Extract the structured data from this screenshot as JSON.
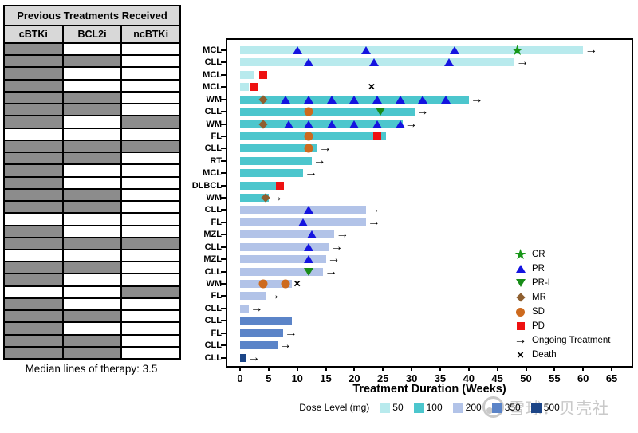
{
  "table": {
    "title": "Previous Treatments Received",
    "columns": [
      "cBTKi",
      "BCL2i",
      "ncBTKi"
    ],
    "rows": [
      [
        1,
        0,
        0
      ],
      [
        1,
        1,
        0
      ],
      [
        1,
        0,
        0
      ],
      [
        1,
        0,
        0
      ],
      [
        1,
        1,
        0
      ],
      [
        1,
        1,
        0
      ],
      [
        1,
        0,
        1
      ],
      [
        0,
        0,
        0
      ],
      [
        1,
        1,
        1
      ],
      [
        1,
        1,
        0
      ],
      [
        1,
        0,
        0
      ],
      [
        1,
        0,
        0
      ],
      [
        1,
        1,
        0
      ],
      [
        1,
        1,
        0
      ],
      [
        0,
        0,
        0
      ],
      [
        1,
        0,
        0
      ],
      [
        1,
        1,
        1
      ],
      [
        0,
        0,
        0
      ],
      [
        1,
        1,
        0
      ],
      [
        1,
        0,
        0
      ],
      [
        0,
        0,
        1
      ],
      [
        1,
        0,
        0
      ],
      [
        1,
        1,
        0
      ],
      [
        1,
        0,
        0
      ],
      [
        1,
        1,
        0
      ],
      [
        1,
        1,
        0
      ]
    ],
    "filled_color": "#8c8c8c",
    "footnote": "Median lines of therapy: 3.5"
  },
  "watermark": {
    "text": "雪球：贝壳社"
  },
  "chart_data": {
    "type": "bar",
    "subtype": "swimmer-plot",
    "xlabel": "Treatment Duration (Weeks)",
    "xlim": [
      0,
      65
    ],
    "x_ticks": [
      0,
      5,
      10,
      15,
      20,
      25,
      30,
      35,
      40,
      45,
      50,
      55,
      60,
      65
    ],
    "grid": false,
    "legend_position": "inside-right",
    "dose_legend": {
      "title": "Dose Level (mg)",
      "levels": [
        {
          "label": "50",
          "color": "#b8eaed"
        },
        {
          "label": "100",
          "color": "#4cc6cd"
        },
        {
          "label": "200",
          "color": "#b2c3e8"
        },
        {
          "label": "350",
          "color": "#5b84c8"
        },
        {
          "label": "500",
          "color": "#1c4587"
        }
      ]
    },
    "marker_legend": [
      {
        "code": "CR",
        "label": "CR",
        "shape": "star",
        "color": "#189618"
      },
      {
        "code": "PR",
        "label": "PR",
        "shape": "triangle-up",
        "color": "#1414e0"
      },
      {
        "code": "PR-L",
        "label": "PR-L",
        "shape": "triangle-down",
        "color": "#188c18"
      },
      {
        "code": "MR",
        "label": "MR",
        "shape": "diamond",
        "color": "#8f5f2f"
      },
      {
        "code": "SD",
        "label": "SD",
        "shape": "circle",
        "color": "#cd6a1e"
      },
      {
        "code": "PD",
        "label": "PD",
        "shape": "square",
        "color": "#ee1111"
      },
      {
        "code": "Ongoing",
        "label": "Ongoing Treatment",
        "shape": "arrow",
        "color": "#000000"
      },
      {
        "code": "Death",
        "label": "Death",
        "shape": "cross",
        "color": "#000000"
      }
    ],
    "patients": [
      {
        "diagnosis": "MCL",
        "dose": "50",
        "duration_weeks": 60,
        "ongoing": true,
        "markers": [
          {
            "code": "PR",
            "week": 10
          },
          {
            "code": "PR",
            "week": 22
          },
          {
            "code": "PR",
            "week": 37.5
          },
          {
            "code": "CR",
            "week": 48.5
          }
        ]
      },
      {
        "diagnosis": "CLL",
        "dose": "50",
        "duration_weeks": 48,
        "ongoing": true,
        "markers": [
          {
            "code": "PR",
            "week": 12
          },
          {
            "code": "PR",
            "week": 23.5
          },
          {
            "code": "PR",
            "week": 36.5
          }
        ]
      },
      {
        "diagnosis": "MCL",
        "dose": "50",
        "duration_weeks": 2.5,
        "ongoing": false,
        "markers": [
          {
            "code": "PD",
            "week": 4
          }
        ]
      },
      {
        "diagnosis": "MCL",
        "dose": "50",
        "duration_weeks": 1.5,
        "ongoing": false,
        "markers": [
          {
            "code": "PD",
            "week": 2.5
          },
          {
            "code": "Death",
            "week": 23
          }
        ]
      },
      {
        "diagnosis": "WM",
        "dose": "100",
        "duration_weeks": 40,
        "ongoing": true,
        "markers": [
          {
            "code": "MR",
            "week": 4
          },
          {
            "code": "PR",
            "week": 8
          },
          {
            "code": "PR",
            "week": 12
          },
          {
            "code": "PR",
            "week": 16
          },
          {
            "code": "PR",
            "week": 20
          },
          {
            "code": "PR",
            "week": 24
          },
          {
            "code": "PR",
            "week": 28
          },
          {
            "code": "PR",
            "week": 32
          },
          {
            "code": "PR",
            "week": 36
          }
        ]
      },
      {
        "diagnosis": "CLL",
        "dose": "100",
        "duration_weeks": 30.5,
        "ongoing": true,
        "markers": [
          {
            "code": "SD",
            "week": 12
          },
          {
            "code": "PR-L",
            "week": 24.5
          }
        ]
      },
      {
        "diagnosis": "WM",
        "dose": "100",
        "duration_weeks": 28.5,
        "ongoing": true,
        "markers": [
          {
            "code": "MR",
            "week": 4
          },
          {
            "code": "PR",
            "week": 8.5
          },
          {
            "code": "PR",
            "week": 12
          },
          {
            "code": "PR",
            "week": 16
          },
          {
            "code": "PR",
            "week": 20
          },
          {
            "code": "PR",
            "week": 24
          },
          {
            "code": "PR",
            "week": 28
          }
        ]
      },
      {
        "diagnosis": "FL",
        "dose": "100",
        "duration_weeks": 25.5,
        "ongoing": false,
        "markers": [
          {
            "code": "SD",
            "week": 12
          },
          {
            "code": "PD",
            "week": 24
          }
        ]
      },
      {
        "diagnosis": "CLL",
        "dose": "100",
        "duration_weeks": 13.5,
        "ongoing": true,
        "markers": [
          {
            "code": "SD",
            "week": 12
          }
        ]
      },
      {
        "diagnosis": "RT",
        "dose": "100",
        "duration_weeks": 12.5,
        "ongoing": true,
        "markers": []
      },
      {
        "diagnosis": "MCL",
        "dose": "100",
        "duration_weeks": 11,
        "ongoing": true,
        "markers": []
      },
      {
        "diagnosis": "DLBCL",
        "dose": "100",
        "duration_weeks": 7.5,
        "ongoing": false,
        "markers": [
          {
            "code": "PD",
            "week": 7
          }
        ]
      },
      {
        "diagnosis": "WM",
        "dose": "100",
        "duration_weeks": 5,
        "ongoing": true,
        "markers": [
          {
            "code": "MR",
            "week": 4.5
          }
        ]
      },
      {
        "diagnosis": "CLL",
        "dose": "200",
        "duration_weeks": 22,
        "ongoing": true,
        "markers": [
          {
            "code": "PR",
            "week": 12
          }
        ]
      },
      {
        "diagnosis": "FL",
        "dose": "200",
        "duration_weeks": 22,
        "ongoing": true,
        "markers": [
          {
            "code": "PR",
            "week": 11
          }
        ]
      },
      {
        "diagnosis": "MZL",
        "dose": "200",
        "duration_weeks": 16.5,
        "ongoing": true,
        "markers": [
          {
            "code": "PR",
            "week": 12.5
          }
        ]
      },
      {
        "diagnosis": "CLL",
        "dose": "200",
        "duration_weeks": 15.5,
        "ongoing": true,
        "markers": [
          {
            "code": "PR",
            "week": 12
          }
        ]
      },
      {
        "diagnosis": "MZL",
        "dose": "200",
        "duration_weeks": 15,
        "ongoing": true,
        "markers": [
          {
            "code": "PR",
            "week": 12
          }
        ]
      },
      {
        "diagnosis": "CLL",
        "dose": "200",
        "duration_weeks": 14.5,
        "ongoing": true,
        "markers": [
          {
            "code": "PR-L",
            "week": 12
          }
        ]
      },
      {
        "diagnosis": "WM",
        "dose": "200",
        "duration_weeks": 9,
        "ongoing": false,
        "markers": [
          {
            "code": "SD",
            "week": 4
          },
          {
            "code": "SD",
            "week": 8
          },
          {
            "code": "Death",
            "week": 10
          }
        ]
      },
      {
        "diagnosis": "FL",
        "dose": "200",
        "duration_weeks": 4.5,
        "ongoing": true,
        "markers": []
      },
      {
        "diagnosis": "CLL",
        "dose": "200",
        "duration_weeks": 1.5,
        "ongoing": true,
        "markers": []
      },
      {
        "diagnosis": "CLL",
        "dose": "350",
        "duration_weeks": 9,
        "ongoing": false,
        "markers": []
      },
      {
        "diagnosis": "FL",
        "dose": "350",
        "duration_weeks": 7.5,
        "ongoing": true,
        "markers": []
      },
      {
        "diagnosis": "CLL",
        "dose": "350",
        "duration_weeks": 6.5,
        "ongoing": true,
        "markers": []
      },
      {
        "diagnosis": "CLL",
        "dose": "500",
        "duration_weeks": 1,
        "ongoing": true,
        "markers": []
      }
    ]
  }
}
